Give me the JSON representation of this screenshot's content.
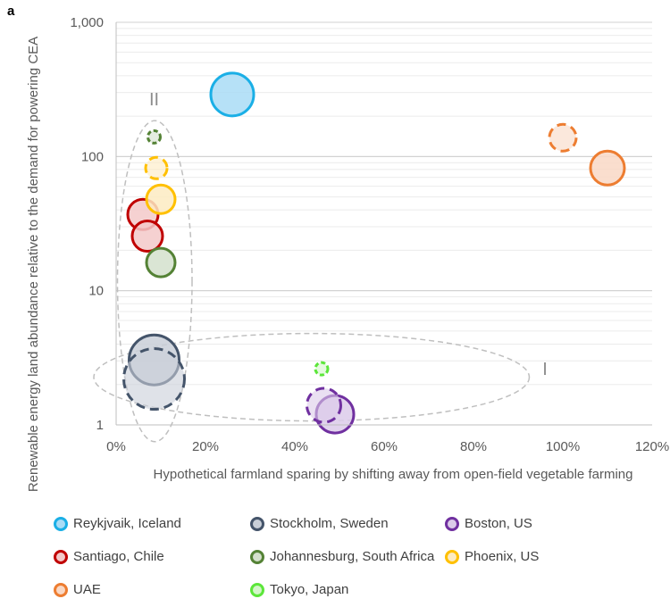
{
  "chart_data": {
    "type": "scatter",
    "panel_label": "a",
    "xlabel": "Hypothetical farmland sparing by shifting away from open-field vegetable farming",
    "ylabel": "Renewable energy land abundance relative to the demand for powering CEA",
    "xlim": [
      0,
      120
    ],
    "ylim": [
      1,
      1000
    ],
    "yscale": "log",
    "x_ticks": [
      "0%",
      "20%",
      "40%",
      "60%",
      "80%",
      "100%",
      "120%"
    ],
    "y_ticks": [
      "1",
      "10",
      "100",
      "1,000"
    ],
    "grid": "horizontal major and minor",
    "legend_position": "bottom",
    "annotations": [
      {
        "text": "II",
        "x": 8.5,
        "y": 240
      },
      {
        "text": "I",
        "x": 96,
        "y": 2.35
      }
    ],
    "groups": [
      {
        "label": "II",
        "shape": "dashed ellipse",
        "x_range": [
          0.3,
          17
        ],
        "y_range": [
          0.75,
          185
        ]
      },
      {
        "label": "I",
        "shape": "dashed ellipse",
        "x_range": [
          -5,
          92.5
        ],
        "y_range": [
          1.07,
          4.8
        ]
      }
    ],
    "series": [
      {
        "name": "Reykjvaik, Iceland",
        "color": "#1AAFE6",
        "fill": "#A9DCF6",
        "points": [
          {
            "x": 26,
            "y": 290,
            "size": 24,
            "dashed": false
          }
        ]
      },
      {
        "name": "Stockholm, Sweden",
        "color": "#44546A",
        "fill": "#C9CFD8",
        "points": [
          {
            "x": 8.5,
            "y": 3.05,
            "size": 28,
            "dashed": false
          },
          {
            "x": 8.5,
            "y": 2.2,
            "size": 34,
            "dashed": true
          }
        ]
      },
      {
        "name": "Boston, US",
        "color": "#7030A0",
        "fill": "#DCCBEA",
        "points": [
          {
            "x": 46.5,
            "y": 1.4,
            "size": 19,
            "dashed": true
          },
          {
            "x": 49,
            "y": 1.2,
            "size": 21,
            "dashed": false
          }
        ]
      },
      {
        "name": "Santiago, Chile",
        "color": "#C00000",
        "fill": "#F3C9C9",
        "points": [
          {
            "x": 6,
            "y": 37,
            "size": 17,
            "dashed": false
          },
          {
            "x": 7,
            "y": 25.5,
            "size": 17,
            "dashed": false
          }
        ]
      },
      {
        "name": "Johannesburg, South Africa",
        "color": "#548235",
        "fill": "#D4E0CC",
        "points": [
          {
            "x": 8.5,
            "y": 140,
            "size": 7,
            "dashed": true
          },
          {
            "x": 10,
            "y": 16.2,
            "size": 16,
            "dashed": false
          }
        ]
      },
      {
        "name": "Phoenix, US",
        "color": "#FFC000",
        "fill": "#FDEBC2",
        "points": [
          {
            "x": 9,
            "y": 82,
            "size": 12,
            "dashed": true
          },
          {
            "x": 10,
            "y": 48,
            "size": 16,
            "dashed": false
          }
        ]
      },
      {
        "name": "UAE",
        "color": "#ED7D31",
        "fill": "#F9D8C5",
        "points": [
          {
            "x": 100,
            "y": 138,
            "size": 15,
            "dashed": true
          },
          {
            "x": 110,
            "y": 82,
            "size": 19,
            "dashed": false
          }
        ]
      },
      {
        "name": "Tokyo, Japan",
        "color": "#5CE63A",
        "fill": "#D3F6C9",
        "points": [
          {
            "x": 46,
            "y": 2.62,
            "size": 7,
            "dashed": true
          }
        ]
      }
    ]
  }
}
